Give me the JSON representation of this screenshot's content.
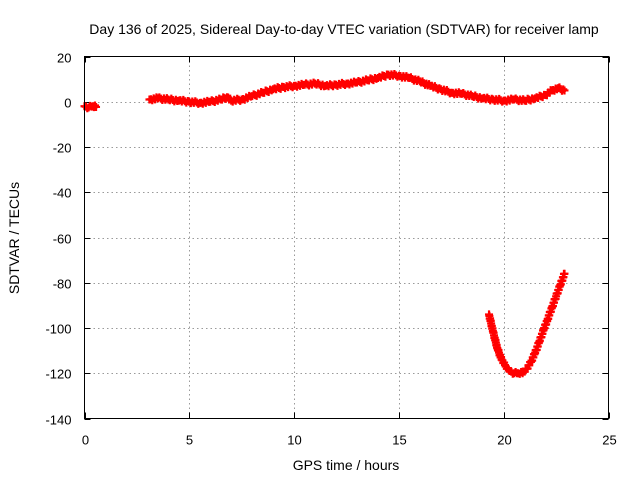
{
  "chart_data": {
    "type": "scatter",
    "title": "Day 136 of 2025, Sidereal Day-to-day VTEC variation (SDTVAR) for receiver lamp",
    "xlabel": "GPS time / hours",
    "ylabel": "SDTVAR / TECUs",
    "xlim": [
      0,
      25
    ],
    "ylim": [
      -140,
      20
    ],
    "xticks": [
      0,
      5,
      10,
      15,
      20,
      25
    ],
    "yticks": [
      -140,
      -120,
      -100,
      -80,
      -60,
      -40,
      -20,
      0,
      20
    ],
    "grid": true,
    "marker": "plus",
    "color": "#ff0000",
    "series": [
      {
        "name": "segment-1",
        "x": [
          0.0,
          0.2,
          0.4,
          0.55
        ],
        "y": [
          -2.0,
          -2.5,
          -2.0,
          -2.3
        ]
      },
      {
        "name": "segment-2",
        "x": [
          3.1,
          3.5,
          4.0,
          4.5,
          5.0,
          5.5,
          6.0,
          6.5,
          6.8,
          7.0,
          7.5,
          8.0,
          8.5,
          9.0,
          9.5,
          10.0,
          10.5,
          11.0,
          11.5,
          12.0,
          12.5,
          13.0,
          13.5,
          14.0,
          14.5,
          15.0,
          15.5,
          16.0,
          16.5,
          17.0,
          17.5,
          18.0,
          18.5,
          19.0,
          19.5,
          20.0,
          20.5,
          21.0,
          21.5,
          22.0,
          22.3,
          22.6,
          22.9
        ],
        "y": [
          1.0,
          1.5,
          1.0,
          0.5,
          0.0,
          -0.5,
          0.0,
          1.0,
          2.0,
          0.5,
          1.0,
          2.5,
          4.0,
          5.5,
          6.5,
          7.0,
          7.5,
          8.0,
          7.0,
          7.5,
          8.0,
          8.5,
          9.5,
          10.5,
          12.0,
          11.5,
          10.5,
          9.0,
          7.0,
          5.5,
          4.0,
          3.5,
          2.5,
          1.5,
          1.0,
          0.5,
          1.0,
          0.5,
          1.5,
          3.0,
          5.0,
          6.0,
          5.0
        ]
      },
      {
        "name": "segment-3",
        "x": [
          19.3,
          19.5,
          19.7,
          19.9,
          20.1,
          20.3,
          20.5,
          20.7,
          20.9,
          21.1,
          21.3,
          21.5,
          21.7,
          21.9,
          22.1,
          22.3,
          22.5,
          22.7,
          22.9
        ],
        "y": [
          -94,
          -102,
          -109,
          -114,
          -117,
          -119,
          -120,
          -120,
          -120,
          -118,
          -115,
          -111,
          -106,
          -101,
          -96,
          -91,
          -86,
          -81,
          -76
        ]
      }
    ]
  }
}
